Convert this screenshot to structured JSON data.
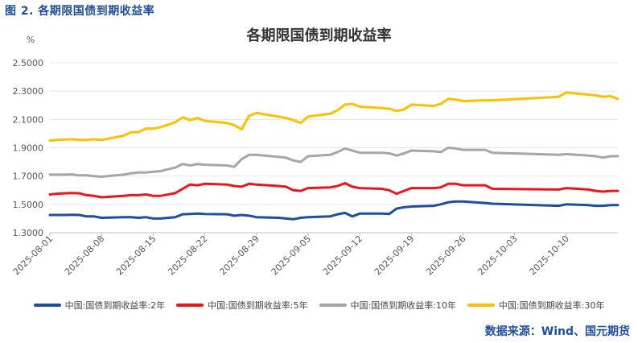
{
  "figure_caption": "图 2.  各期限国债到期收益率",
  "source": "数据来源：Wind、国元期货",
  "chart_data": {
    "type": "line",
    "title": "各期限国债到期收益率",
    "ylabel": "%",
    "xlabel": "",
    "ylim": [
      1.3,
      2.5
    ],
    "yticks": [
      "1.3000",
      "1.5000",
      "1.7000",
      "1.9000",
      "2.1000",
      "2.3000",
      "2.5000"
    ],
    "grid": "horizontal",
    "legend_position": "bottom",
    "x_start": "2025-08-01",
    "x_end": "2025-10-17",
    "xticks": [
      "2025-08-01",
      "2025-08-08",
      "2025-08-15",
      "2025-08-22",
      "2025-08-29",
      "2025-09-05",
      "2025-09-12",
      "2025-09-19",
      "2025-09-26",
      "2025-10-03",
      "2025-10-10"
    ],
    "series": [
      {
        "name": "中国:国债到期收益率:2年",
        "color": "#1F4E9C",
        "points": [
          [
            "2025-08-01",
            1.425
          ],
          [
            "2025-08-02",
            1.425
          ],
          [
            "2025-08-03",
            1.425
          ],
          [
            "2025-08-04",
            1.427
          ],
          [
            "2025-08-05",
            1.425
          ],
          [
            "2025-08-06",
            1.415
          ],
          [
            "2025-08-07",
            1.415
          ],
          [
            "2025-08-08",
            1.405
          ],
          [
            "2025-08-11",
            1.41
          ],
          [
            "2025-08-12",
            1.41
          ],
          [
            "2025-08-13",
            1.405
          ],
          [
            "2025-08-14",
            1.41
          ],
          [
            "2025-08-15",
            1.4
          ],
          [
            "2025-08-16",
            1.4
          ],
          [
            "2025-08-18",
            1.41
          ],
          [
            "2025-08-19",
            1.43
          ],
          [
            "2025-08-20",
            1.432
          ],
          [
            "2025-08-21",
            1.435
          ],
          [
            "2025-08-22",
            1.432
          ],
          [
            "2025-08-25",
            1.43
          ],
          [
            "2025-08-26",
            1.42
          ],
          [
            "2025-08-27",
            1.425
          ],
          [
            "2025-08-28",
            1.42
          ],
          [
            "2025-08-29",
            1.41
          ],
          [
            "2025-09-01",
            1.405
          ],
          [
            "2025-09-02",
            1.4
          ],
          [
            "2025-09-03",
            1.395
          ],
          [
            "2025-09-04",
            1.405
          ],
          [
            "2025-09-05",
            1.41
          ],
          [
            "2025-09-08",
            1.415
          ],
          [
            "2025-09-09",
            1.43
          ],
          [
            "2025-09-10",
            1.44
          ],
          [
            "2025-09-11",
            1.415
          ],
          [
            "2025-09-12",
            1.435
          ],
          [
            "2025-09-15",
            1.435
          ],
          [
            "2025-09-16",
            1.432
          ],
          [
            "2025-09-17",
            1.47
          ],
          [
            "2025-09-18",
            1.48
          ],
          [
            "2025-09-19",
            1.485
          ],
          [
            "2025-09-22",
            1.49
          ],
          [
            "2025-09-23",
            1.5
          ],
          [
            "2025-09-24",
            1.515
          ],
          [
            "2025-09-25",
            1.52
          ],
          [
            "2025-09-26",
            1.52
          ],
          [
            "2025-09-29",
            1.51
          ],
          [
            "2025-09-30",
            1.505
          ],
          [
            "2025-10-09",
            1.49
          ],
          [
            "2025-10-10",
            1.5
          ],
          [
            "2025-10-13",
            1.495
          ],
          [
            "2025-10-14",
            1.49
          ],
          [
            "2025-10-15",
            1.49
          ],
          [
            "2025-10-16",
            1.495
          ],
          [
            "2025-10-17",
            1.495
          ]
        ]
      },
      {
        "name": "中国:国债到期收益率:5年",
        "color": "#E8171B",
        "points": [
          [
            "2025-08-01",
            1.57
          ],
          [
            "2025-08-02",
            1.575
          ],
          [
            "2025-08-03",
            1.578
          ],
          [
            "2025-08-04",
            1.58
          ],
          [
            "2025-08-05",
            1.578
          ],
          [
            "2025-08-06",
            1.565
          ],
          [
            "2025-08-07",
            1.56
          ],
          [
            "2025-08-08",
            1.55
          ],
          [
            "2025-08-11",
            1.56
          ],
          [
            "2025-08-12",
            1.565
          ],
          [
            "2025-08-13",
            1.565
          ],
          [
            "2025-08-14",
            1.57
          ],
          [
            "2025-08-15",
            1.56
          ],
          [
            "2025-08-16",
            1.56
          ],
          [
            "2025-08-18",
            1.58
          ],
          [
            "2025-08-19",
            1.61
          ],
          [
            "2025-08-20",
            1.64
          ],
          [
            "2025-08-21",
            1.635
          ],
          [
            "2025-08-22",
            1.645
          ],
          [
            "2025-08-25",
            1.64
          ],
          [
            "2025-08-26",
            1.63
          ],
          [
            "2025-08-27",
            1.625
          ],
          [
            "2025-08-28",
            1.645
          ],
          [
            "2025-08-29",
            1.64
          ],
          [
            "2025-09-01",
            1.63
          ],
          [
            "2025-09-02",
            1.625
          ],
          [
            "2025-09-03",
            1.6
          ],
          [
            "2025-09-04",
            1.595
          ],
          [
            "2025-09-05",
            1.615
          ],
          [
            "2025-09-08",
            1.62
          ],
          [
            "2025-09-09",
            1.63
          ],
          [
            "2025-09-10",
            1.65
          ],
          [
            "2025-09-11",
            1.625
          ],
          [
            "2025-09-12",
            1.615
          ],
          [
            "2025-09-15",
            1.61
          ],
          [
            "2025-09-16",
            1.6
          ],
          [
            "2025-09-17",
            1.575
          ],
          [
            "2025-09-18",
            1.595
          ],
          [
            "2025-09-19",
            1.615
          ],
          [
            "2025-09-22",
            1.615
          ],
          [
            "2025-09-23",
            1.62
          ],
          [
            "2025-09-24",
            1.645
          ],
          [
            "2025-09-25",
            1.645
          ],
          [
            "2025-09-26",
            1.635
          ],
          [
            "2025-09-29",
            1.635
          ],
          [
            "2025-09-30",
            1.61
          ],
          [
            "2025-10-09",
            1.605
          ],
          [
            "2025-10-10",
            1.615
          ],
          [
            "2025-10-13",
            1.605
          ],
          [
            "2025-10-14",
            1.595
          ],
          [
            "2025-10-15",
            1.59
          ],
          [
            "2025-10-16",
            1.595
          ],
          [
            "2025-10-17",
            1.595
          ]
        ]
      },
      {
        "name": "中国:国债到期收益率:10年",
        "color": "#A6A6A6",
        "points": [
          [
            "2025-08-01",
            1.71
          ],
          [
            "2025-08-02",
            1.71
          ],
          [
            "2025-08-03",
            1.71
          ],
          [
            "2025-08-04",
            1.712
          ],
          [
            "2025-08-05",
            1.705
          ],
          [
            "2025-08-06",
            1.705
          ],
          [
            "2025-08-07",
            1.7
          ],
          [
            "2025-08-08",
            1.695
          ],
          [
            "2025-08-11",
            1.71
          ],
          [
            "2025-08-12",
            1.72
          ],
          [
            "2025-08-13",
            1.725
          ],
          [
            "2025-08-14",
            1.725
          ],
          [
            "2025-08-15",
            1.73
          ],
          [
            "2025-08-16",
            1.735
          ],
          [
            "2025-08-18",
            1.76
          ],
          [
            "2025-08-19",
            1.785
          ],
          [
            "2025-08-20",
            1.775
          ],
          [
            "2025-08-21",
            1.785
          ],
          [
            "2025-08-22",
            1.78
          ],
          [
            "2025-08-25",
            1.775
          ],
          [
            "2025-08-26",
            1.765
          ],
          [
            "2025-08-27",
            1.82
          ],
          [
            "2025-08-28",
            1.85
          ],
          [
            "2025-08-29",
            1.85
          ],
          [
            "2025-09-01",
            1.835
          ],
          [
            "2025-09-02",
            1.83
          ],
          [
            "2025-09-03",
            1.81
          ],
          [
            "2025-09-04",
            1.8
          ],
          [
            "2025-09-05",
            1.84
          ],
          [
            "2025-09-08",
            1.85
          ],
          [
            "2025-09-09",
            1.87
          ],
          [
            "2025-09-10",
            1.895
          ],
          [
            "2025-09-11",
            1.88
          ],
          [
            "2025-09-12",
            1.865
          ],
          [
            "2025-09-15",
            1.865
          ],
          [
            "2025-09-16",
            1.86
          ],
          [
            "2025-09-17",
            1.845
          ],
          [
            "2025-09-18",
            1.86
          ],
          [
            "2025-09-19",
            1.88
          ],
          [
            "2025-09-22",
            1.875
          ],
          [
            "2025-09-23",
            1.87
          ],
          [
            "2025-09-24",
            1.9
          ],
          [
            "2025-09-25",
            1.895
          ],
          [
            "2025-09-26",
            1.885
          ],
          [
            "2025-09-29",
            1.885
          ],
          [
            "2025-09-30",
            1.865
          ],
          [
            "2025-10-09",
            1.85
          ],
          [
            "2025-10-10",
            1.855
          ],
          [
            "2025-10-13",
            1.845
          ],
          [
            "2025-10-14",
            1.84
          ],
          [
            "2025-10-15",
            1.83
          ],
          [
            "2025-10-16",
            1.84
          ],
          [
            "2025-10-17",
            1.84
          ]
        ]
      },
      {
        "name": "中国:国债到期收益率:30年",
        "color": "#FFC000",
        "points": [
          [
            "2025-08-01",
            1.95
          ],
          [
            "2025-08-02",
            1.955
          ],
          [
            "2025-08-03",
            1.958
          ],
          [
            "2025-08-04",
            1.96
          ],
          [
            "2025-08-05",
            1.955
          ],
          [
            "2025-08-06",
            1.955
          ],
          [
            "2025-08-07",
            1.96
          ],
          [
            "2025-08-08",
            1.955
          ],
          [
            "2025-08-11",
            1.985
          ],
          [
            "2025-08-12",
            2.01
          ],
          [
            "2025-08-13",
            2.01
          ],
          [
            "2025-08-14",
            2.035
          ],
          [
            "2025-08-15",
            2.035
          ],
          [
            "2025-08-16",
            2.045
          ],
          [
            "2025-08-18",
            2.08
          ],
          [
            "2025-08-19",
            2.115
          ],
          [
            "2025-08-20",
            2.095
          ],
          [
            "2025-08-21",
            2.11
          ],
          [
            "2025-08-22",
            2.09
          ],
          [
            "2025-08-25",
            2.075
          ],
          [
            "2025-08-26",
            2.06
          ],
          [
            "2025-08-27",
            2.03
          ],
          [
            "2025-08-28",
            2.125
          ],
          [
            "2025-08-29",
            2.145
          ],
          [
            "2025-09-01",
            2.12
          ],
          [
            "2025-09-02",
            2.11
          ],
          [
            "2025-09-03",
            2.095
          ],
          [
            "2025-09-04",
            2.075
          ],
          [
            "2025-09-05",
            2.12
          ],
          [
            "2025-09-08",
            2.14
          ],
          [
            "2025-09-09",
            2.165
          ],
          [
            "2025-09-10",
            2.205
          ],
          [
            "2025-09-11",
            2.21
          ],
          [
            "2025-09-12",
            2.19
          ],
          [
            "2025-09-15",
            2.18
          ],
          [
            "2025-09-16",
            2.175
          ],
          [
            "2025-09-17",
            2.16
          ],
          [
            "2025-09-18",
            2.17
          ],
          [
            "2025-09-19",
            2.205
          ],
          [
            "2025-09-22",
            2.195
          ],
          [
            "2025-09-23",
            2.21
          ],
          [
            "2025-09-24",
            2.245
          ],
          [
            "2025-09-25",
            2.24
          ],
          [
            "2025-09-26",
            2.23
          ],
          [
            "2025-09-29",
            2.235
          ],
          [
            "2025-09-30",
            2.235
          ],
          [
            "2025-10-09",
            2.26
          ],
          [
            "2025-10-10",
            2.29
          ],
          [
            "2025-10-13",
            2.275
          ],
          [
            "2025-10-14",
            2.27
          ],
          [
            "2025-10-15",
            2.26
          ],
          [
            "2025-10-16",
            2.265
          ],
          [
            "2025-10-17",
            2.245
          ]
        ]
      }
    ]
  }
}
